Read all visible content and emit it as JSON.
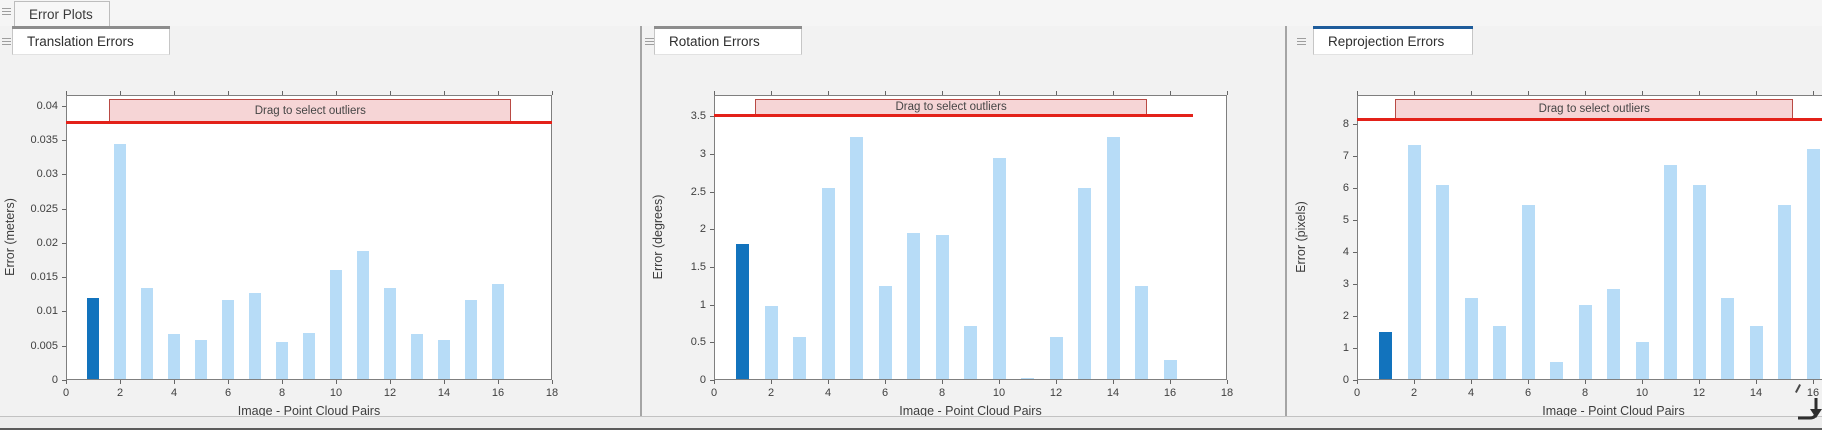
{
  "window": {
    "top_tab": "Error Plots"
  },
  "panels": [
    {
      "tab": "Translation Errors",
      "accent": "#8d8d8d"
    },
    {
      "tab": "Rotation Errors",
      "accent": "#8d8d8d"
    },
    {
      "tab": "Reprojection Errors",
      "accent": "#1e5c9b"
    }
  ],
  "colors": {
    "bar_light": "#b7dcf7",
    "bar_selected": "#1273bd",
    "threshold_red": "#e32119",
    "band_fill": "#f6d5d6",
    "band_border": "#b94a44",
    "axis": "#7f7f7f"
  },
  "annotation_label": "Drag to select outliers",
  "icons": [
    "grip-icon",
    "download-arrow-icon",
    "cursor-mark"
  ],
  "chart_data": [
    {
      "type": "bar",
      "title": "Translation Errors",
      "xlabel": "Image - Point Cloud Pairs",
      "ylabel": "Error (meters)",
      "x": [
        1,
        2,
        3,
        4,
        5,
        6,
        7,
        8,
        9,
        10,
        11,
        12,
        13,
        14,
        15,
        16
      ],
      "values": [
        0.012,
        0.0345,
        0.0135,
        0.0067,
        0.0058,
        0.0117,
        0.0127,
        0.0056,
        0.0068,
        0.016,
        0.0188,
        0.0135,
        0.0067,
        0.0058,
        0.0117,
        0.014
      ],
      "selected_index": 0,
      "xlim": [
        0,
        18
      ],
      "ylim": [
        0,
        0.0416
      ],
      "xticks": [
        0,
        2,
        4,
        6,
        8,
        10,
        12,
        14,
        16,
        18
      ],
      "yticks": [
        0,
        0.005,
        0.01,
        0.015,
        0.02,
        0.025,
        0.03,
        0.035,
        0.04
      ],
      "ytick_labels": [
        "0",
        "0.005",
        "0.01",
        "0.015",
        "0.02",
        "0.025",
        "0.03",
        "0.035",
        "0.04"
      ],
      "threshold": 0.0376,
      "threshold_span": 18,
      "band": {
        "x0": 1.6,
        "x1": 16.5,
        "label": "Drag to select outliers"
      },
      "grid": false,
      "legend": null
    },
    {
      "type": "bar",
      "title": "Rotation Errors",
      "xlabel": "Image - Point Cloud Pairs",
      "ylabel": "Error (degrees)",
      "x": [
        1,
        2,
        3,
        4,
        5,
        6,
        7,
        8,
        9,
        10,
        11,
        12,
        13,
        14,
        15,
        16
      ],
      "values": [
        1.8,
        0.98,
        0.57,
        2.55,
        3.22,
        1.25,
        1.95,
        1.92,
        0.71,
        2.95,
        0.02,
        0.57,
        2.55,
        3.22,
        1.25,
        0.27
      ],
      "selected_index": 0,
      "xlim": [
        0,
        18
      ],
      "ylim": [
        0,
        3.78
      ],
      "xticks": [
        0,
        2,
        4,
        6,
        8,
        10,
        12,
        14,
        16,
        18
      ],
      "yticks": [
        0,
        0.5,
        1,
        1.5,
        2,
        2.5,
        3,
        3.5
      ],
      "ytick_labels": [
        "0",
        "0.5",
        "1",
        "1.5",
        "2",
        "2.5",
        "3",
        "3.5"
      ],
      "threshold": 3.51,
      "threshold_span": 16.8,
      "band": {
        "x0": 1.44,
        "x1": 15.2,
        "label": "Drag to select outliers"
      },
      "grid": false,
      "legend": null
    },
    {
      "type": "bar",
      "title": "Reprojection Errors",
      "xlabel": "Image - Point Cloud Pairs",
      "ylabel": "Error (pixels)",
      "x": [
        1,
        2,
        3,
        4,
        5,
        6,
        7,
        8,
        9,
        10,
        11,
        12,
        13,
        14,
        15,
        16
      ],
      "values": [
        1.5,
        7.35,
        6.1,
        2.55,
        1.7,
        5.45,
        0.55,
        2.35,
        2.85,
        1.2,
        6.7,
        6.1,
        2.55,
        1.7,
        5.45,
        7.2
      ],
      "selected_index": 0,
      "xlim": [
        0,
        18
      ],
      "ylim": [
        0,
        8.9
      ],
      "xticks": [
        0,
        2,
        4,
        6,
        8,
        10,
        12,
        14,
        16,
        18
      ],
      "yticks": [
        0,
        1,
        2,
        3,
        4,
        5,
        6,
        7,
        8
      ],
      "ytick_labels": [
        "0",
        "1",
        "2",
        "3",
        "4",
        "5",
        "6",
        "7",
        "8"
      ],
      "threshold": 8.16,
      "threshold_span": 18,
      "band": {
        "x0": 1.35,
        "x1": 15.3,
        "label": "Drag to select outliers"
      },
      "grid": false,
      "legend": null
    }
  ]
}
